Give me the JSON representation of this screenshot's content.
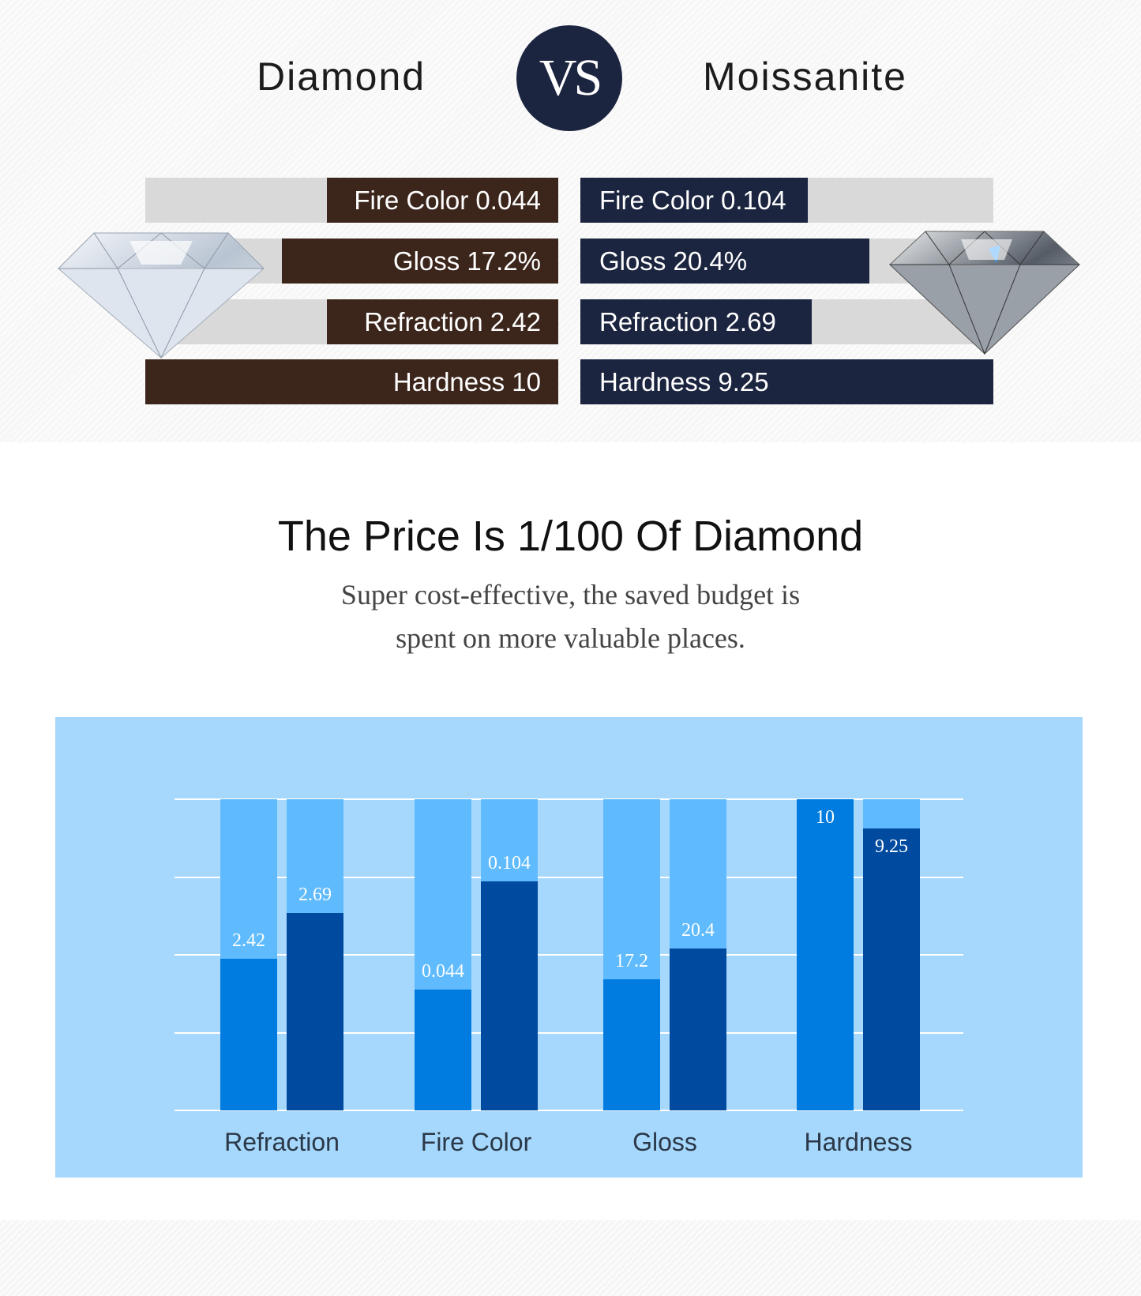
{
  "header": {
    "left_title": "Diamond",
    "vs": "VS",
    "right_title": "Moissanite"
  },
  "comparison": {
    "diamond": [
      {
        "label": "Fire Color 0.044",
        "fill": 0.56
      },
      {
        "label": "Gloss 17.2%",
        "fill": 0.67
      },
      {
        "label": "Refraction 2.42",
        "fill": 0.56
      },
      {
        "label": "Hardness 10",
        "fill": 1.0
      }
    ],
    "moissanite": [
      {
        "label": "Fire Color 0.104",
        "fill": 0.55
      },
      {
        "label": "Gloss 20.4%",
        "fill": 0.7
      },
      {
        "label": "Refraction 2.69",
        "fill": 0.56
      },
      {
        "label": "Hardness 9.25",
        "fill": 1.0
      }
    ],
    "colors": {
      "diamond": "#3c261c",
      "moissanite": "#1c2540",
      "track": "#d9d9d9"
    }
  },
  "price": {
    "title": "The Price Is 1/100 Of Diamond",
    "subtitle_line1": "Super cost-effective, the saved budget is",
    "subtitle_line2": "spent on more valuable places."
  },
  "chart_data": {
    "type": "bar",
    "categories": [
      "Refraction",
      "Fire Color",
      "Gloss",
      "Hardness"
    ],
    "series": [
      {
        "values": [
          2.42,
          0.044,
          17.2,
          10
        ],
        "labels": [
          "2.42",
          "0.044",
          "17.2",
          "10"
        ],
        "fill": [
          0.487,
          0.389,
          0.421,
          1.0
        ],
        "color": "#007bdf"
      },
      {
        "values": [
          2.69,
          0.104,
          20.4,
          9.25
        ],
        "labels": [
          "2.69",
          "0.104",
          "20.4",
          "9.25"
        ],
        "fill": [
          0.635,
          0.735,
          0.521,
          0.905
        ],
        "color": "#004a9f"
      }
    ],
    "background_bar_color": "#5fbbfd",
    "panel_color": "#a5d8fc",
    "grid": true
  }
}
